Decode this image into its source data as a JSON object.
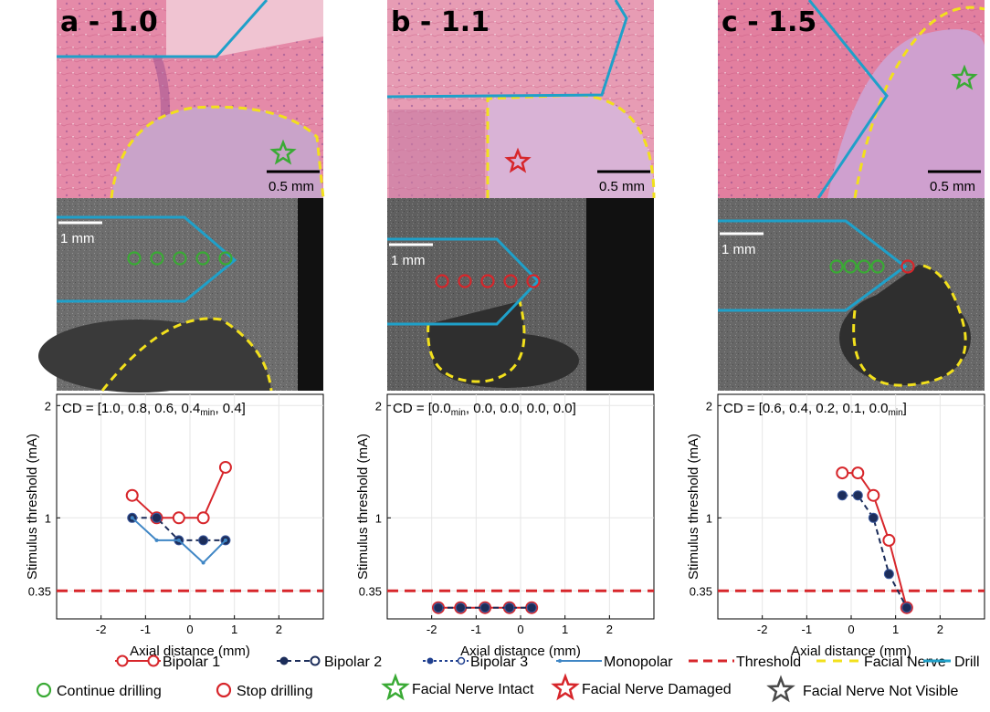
{
  "panels": [
    {
      "label": "a - 1.0",
      "histo_scale": "0.5 mm",
      "ct_scale": "1 mm",
      "cd_text": "CD = [1.0, 0.8, 0.6, 0.4",
      "cd_min": "min",
      "cd_tail": ", 0.4]",
      "colors": {
        "histo_bg": "#e58aa8",
        "ct_bg": "#6d6d6d"
      },
      "ct_circles": [
        "green",
        "green",
        "green",
        "green",
        "green"
      ],
      "star_color": "#3aaa35"
    },
    {
      "label": "b - 1.1",
      "histo_scale": "0.5 mm",
      "ct_scale": "1 mm",
      "cd_text": "CD = [0.0",
      "cd_min": "min",
      "cd_tail": ", 0.0, 0.0, 0.0, 0.0]",
      "colors": {
        "histo_bg": "#e79cb4",
        "ct_bg": "#5f5f5f"
      },
      "ct_circles": [
        "red",
        "red",
        "red",
        "red",
        "red"
      ],
      "star_color": "#d7262b"
    },
    {
      "label": "c - 1.5",
      "histo_scale": "0.5 mm",
      "ct_scale": "1 mm",
      "cd_text": "CD = [0.6, 0.4, 0.2, 0.1, 0.0",
      "cd_min": "min",
      "cd_tail": "]",
      "colors": {
        "histo_bg": "#e27f9f",
        "ct_bg": "#676767"
      },
      "ct_circles": [
        "green",
        "green",
        "green",
        "green",
        "red"
      ],
      "star_color": "#3aaa35"
    }
  ],
  "chart_data": [
    {
      "type": "line",
      "panel": "a",
      "xlabel": "Axial distance (mm)",
      "ylabel": "Stimulus threshold (mA)",
      "xlim": [
        -3,
        3
      ],
      "ylim": [
        0.1,
        2.1
      ],
      "xticks": [
        "-2",
        "-1",
        "0",
        "1",
        "2"
      ],
      "yticks": [
        "0.35",
        "1",
        "2"
      ],
      "threshold": 0.35,
      "series": [
        {
          "name": "Bipolar 1",
          "x": [
            -1.3,
            -0.75,
            -0.25,
            0.3,
            0.8
          ],
          "y": [
            1.2,
            1.0,
            1.0,
            1.0,
            1.45
          ]
        },
        {
          "name": "Bipolar 2",
          "x": [
            -1.3,
            -0.75,
            -0.25,
            0.3,
            0.8
          ],
          "y": [
            1.0,
            1.0,
            0.8,
            0.8,
            0.8
          ]
        },
        {
          "name": "Monopolar",
          "x": [
            -1.3,
            -0.75,
            -0.25,
            0.3,
            0.8
          ],
          "y": [
            1.0,
            0.8,
            0.8,
            0.6,
            0.8
          ]
        }
      ]
    },
    {
      "type": "line",
      "panel": "b",
      "xlabel": "Axial distance (mm)",
      "ylabel": "Stimulus threshold (mA)",
      "xlim": [
        -3,
        3
      ],
      "ylim": [
        0.1,
        2.1
      ],
      "xticks": [
        "-2",
        "-1",
        "0",
        "1",
        "2"
      ],
      "yticks": [
        "0.35",
        "1",
        "2"
      ],
      "threshold": 0.35,
      "series": [
        {
          "name": "Bipolar 1",
          "x": [
            -1.85,
            -1.35,
            -0.8,
            -0.25,
            0.25
          ],
          "y": [
            0.2,
            0.2,
            0.2,
            0.2,
            0.2
          ]
        },
        {
          "name": "Bipolar 2",
          "x": [
            -1.85,
            -1.35,
            -0.8,
            -0.25,
            0.25
          ],
          "y": [
            0.2,
            0.2,
            0.2,
            0.2,
            0.2
          ]
        }
      ]
    },
    {
      "type": "line",
      "panel": "c",
      "xlabel": "Axial distance (mm)",
      "ylabel": "Stimulus threshold (mA)",
      "xlim": [
        -3,
        3
      ],
      "ylim": [
        0.1,
        2.1
      ],
      "xticks": [
        "-2",
        "-1",
        "0",
        "1",
        "2"
      ],
      "yticks": [
        "0.35",
        "1",
        "2"
      ],
      "threshold": 0.35,
      "series": [
        {
          "name": "Bipolar 1",
          "x": [
            -0.2,
            0.15,
            0.5,
            0.85,
            1.25
          ],
          "y": [
            1.4,
            1.4,
            1.2,
            0.8,
            0.2
          ]
        },
        {
          "name": "Bipolar 2",
          "x": [
            -0.2,
            0.15,
            0.5,
            0.85,
            1.25
          ],
          "y": [
            1.2,
            1.2,
            1.0,
            0.5,
            0.2
          ]
        }
      ]
    }
  ],
  "legend": {
    "row1": [
      {
        "label": "Bipolar 1",
        "style": "bipolar1"
      },
      {
        "label": "Bipolar 2",
        "style": "bipolar2"
      },
      {
        "label": "Bipolar 3",
        "style": "bipolar3"
      },
      {
        "label": "Monopolar",
        "style": "monopolar"
      },
      {
        "label": "Threshold",
        "style": "threshold"
      },
      {
        "label": "Facial Nerve",
        "style": "nerve"
      },
      {
        "label": "Drill",
        "style": "drill"
      }
    ],
    "row2": [
      {
        "label": "Continue drilling",
        "style": "circle-green"
      },
      {
        "label": "Stop drilling",
        "style": "circle-red"
      },
      {
        "label": "Facial Nerve Intact",
        "style": "star-green"
      },
      {
        "label": "Facial Nerve Damaged",
        "style": "star-red"
      },
      {
        "label": "Facial Nerve Not Visible",
        "style": "star-gray"
      }
    ]
  },
  "colors": {
    "bipolar1": "#d7262b",
    "bipolar2": "#1c2d5a",
    "bipolar3": "#1f3f8f",
    "monopolar": "#3f86c5",
    "threshold": "#d7262b",
    "nerve": "#f2e01c",
    "drill": "#1fa0c9",
    "continue": "#3aaa35",
    "stop": "#d7262b",
    "notvisible": "#4a4a4a"
  }
}
